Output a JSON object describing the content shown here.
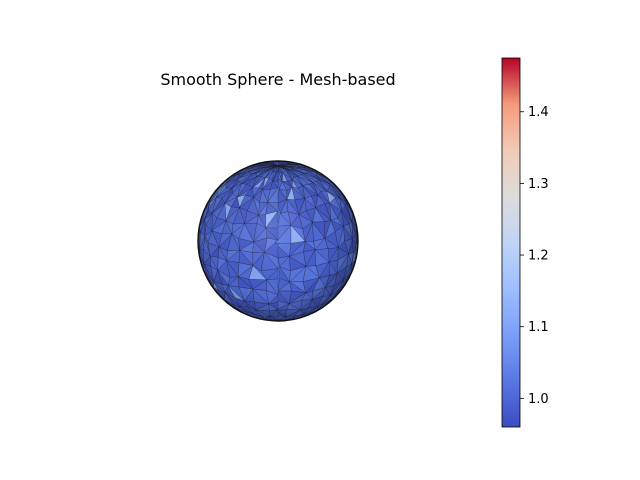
{
  "chart_data": {
    "type": "surface-mesh",
    "title": "Smooth Sphere - Mesh-based",
    "colormap": "coolwarm",
    "colorbar": {
      "range": [
        0.96,
        1.475
      ],
      "ticks": [
        1.0,
        1.1,
        1.2,
        1.3,
        1.4
      ],
      "tick_labels": [
        "1.0",
        "1.1",
        "1.2",
        "1.3",
        "1.4"
      ],
      "placement": "right"
    },
    "value_range_observed": [
      0.96,
      1.35
    ],
    "axes_visible": false,
    "edge_color": "#000000"
  }
}
